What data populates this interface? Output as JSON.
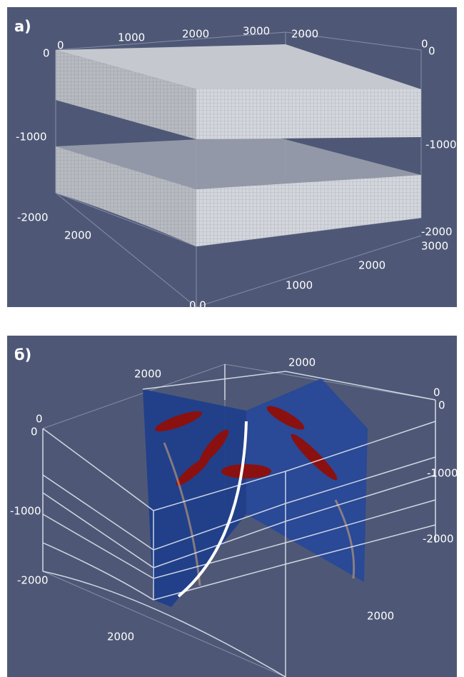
{
  "panels": [
    {
      "label": "а)",
      "axis_labels": [
        "0",
        "0",
        "1000",
        "2000",
        "3000",
        "2000",
        "0",
        "0",
        "-1000",
        "-1000",
        "-2000",
        "-2000",
        "3000",
        "2000",
        "2000",
        "1000",
        "0 0"
      ]
    },
    {
      "label": "б)",
      "axis_labels": [
        "2000",
        "2000",
        "0",
        "0",
        "0",
        "0",
        "-1000",
        "-1000",
        "-2000",
        "-2000",
        "2000",
        "2000"
      ]
    }
  ]
}
